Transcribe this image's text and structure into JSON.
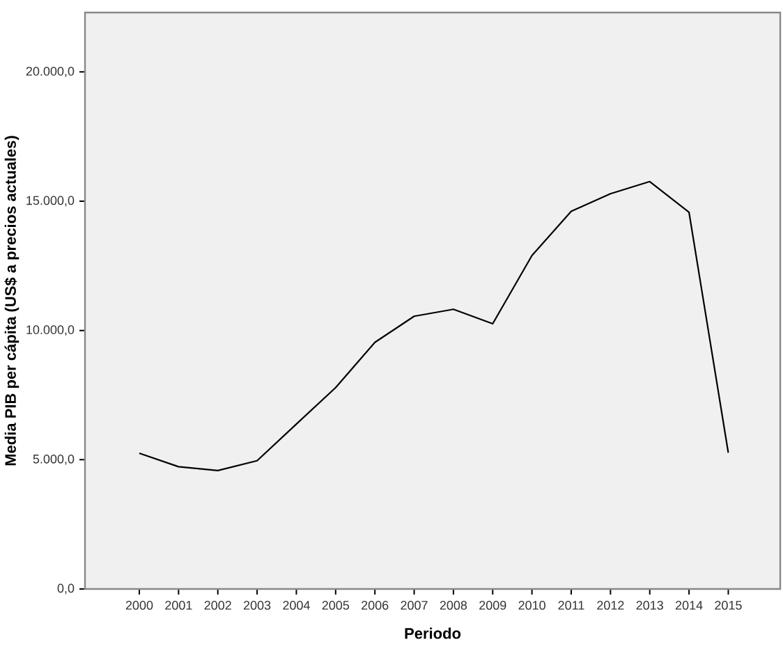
{
  "chart_data": {
    "type": "line",
    "xlabel": "Periodo",
    "ylabel": "Media PIB per cápita (US$ a precios actuales)",
    "categories": [
      "2000",
      "2001",
      "2002",
      "2003",
      "2004",
      "2005",
      "2006",
      "2007",
      "2008",
      "2009",
      "2010",
      "2011",
      "2012",
      "2013",
      "2014",
      "2015"
    ],
    "values": [
      5250,
      4730,
      4580,
      4960,
      6380,
      7790,
      9540,
      10550,
      10820,
      10260,
      12900,
      14610,
      15290,
      15760,
      14570,
      5270
    ],
    "color": "#000000",
    "ylim": [
      0,
      22300
    ],
    "yticks": [
      {
        "value": 0,
        "label": "0,0"
      },
      {
        "value": 5000,
        "label": "5.000,0"
      },
      {
        "value": 10000,
        "label": "10.000,0"
      },
      {
        "value": 15000,
        "label": "15.000,0"
      },
      {
        "value": 20000,
        "label": "20.000,0"
      }
    ],
    "marker": "none",
    "line_style": "solid"
  }
}
